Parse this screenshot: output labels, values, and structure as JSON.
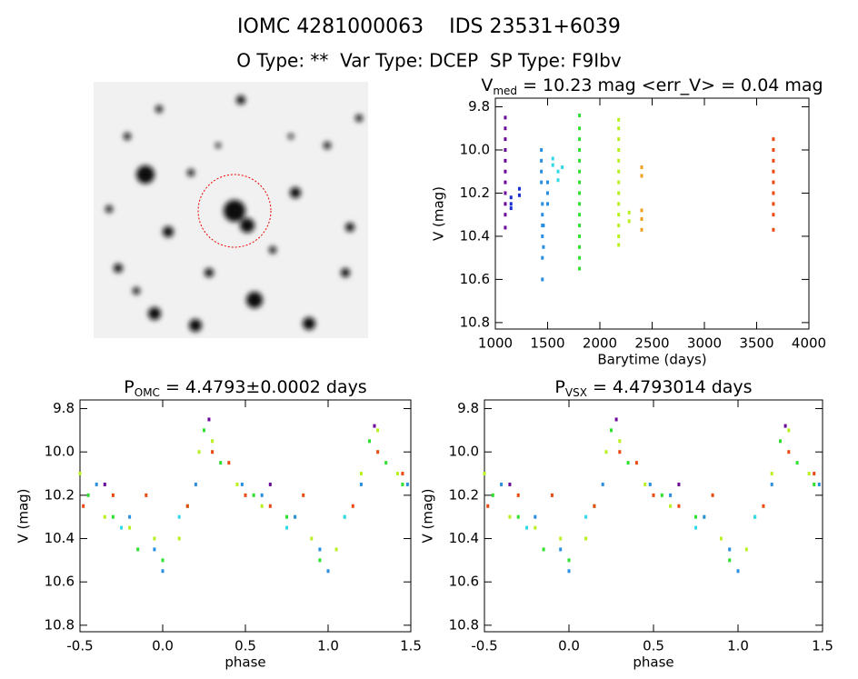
{
  "header": {
    "title": "IOMC 4281000063    IDS 23531+6039",
    "subtitle": "O Type: **  Var Type: DCEP  SP Type: F9Ibv"
  },
  "chart_data": [
    {
      "type": "scatter",
      "title": "V",
      "title_sub": "med",
      "title_rest": " = 10.23 mag <err_V> = 0.04 mag",
      "x_label": "Barytime (days)",
      "y_label": "V (mag)",
      "xlim": [
        1000,
        4000
      ],
      "xticks": [
        1000,
        1500,
        2000,
        2500,
        3000,
        3500,
        4000
      ],
      "ylim": [
        10.83,
        9.76
      ],
      "yticks": [
        9.8,
        {
          "value": 10,
          "label": "10.0"
        },
        10.2,
        10.4,
        10.6,
        10.8
      ],
      "series": [
        {
          "color": "#6a0a9a",
          "x": [
            1095,
            1095,
            1095,
            1095,
            1095,
            1095,
            1095,
            1095,
            1095,
            1095,
            1095
          ],
          "values": [
            9.85,
            9.9,
            9.95,
            10.0,
            10.05,
            10.1,
            10.15,
            10.2,
            10.25,
            10.3,
            10.36
          ]
        },
        {
          "color": "#1a2fd0",
          "x": [
            1150,
            1150,
            1150,
            1230,
            1230
          ],
          "values": [
            10.22,
            10.25,
            10.27,
            10.18,
            10.21
          ]
        },
        {
          "color": "#2a8fe0",
          "x": [
            1440,
            1440,
            1440,
            1440,
            1450,
            1450,
            1450,
            1450,
            1450,
            1450,
            1460,
            1460,
            1500,
            1500,
            1500
          ],
          "values": [
            10.0,
            10.05,
            10.1,
            10.15,
            10.25,
            10.3,
            10.35,
            10.4,
            10.5,
            10.6,
            10.35,
            10.45,
            10.15,
            10.2,
            10.25
          ]
        },
        {
          "color": "#35d8e8",
          "x": [
            1550,
            1550,
            1600,
            1600,
            1640
          ],
          "values": [
            10.04,
            10.07,
            10.1,
            10.14,
            10.08
          ]
        },
        {
          "color": "#2fe02f",
          "x": [
            1805,
            1805,
            1805,
            1805,
            1805,
            1805,
            1805,
            1805,
            1805,
            1805,
            1805,
            1805,
            1805,
            1805,
            1805
          ],
          "values": [
            9.84,
            9.9,
            9.95,
            10.0,
            10.05,
            10.1,
            10.15,
            10.2,
            10.25,
            10.3,
            10.35,
            10.4,
            10.45,
            10.5,
            10.55
          ]
        },
        {
          "color": "#b8f020",
          "x": [
            2180,
            2180,
            2180,
            2180,
            2180,
            2180,
            2180,
            2180,
            2180,
            2180,
            2180,
            2180,
            2180,
            2280,
            2280
          ],
          "values": [
            9.86,
            9.9,
            9.95,
            10.0,
            10.05,
            10.1,
            10.15,
            10.2,
            10.25,
            10.3,
            10.35,
            10.4,
            10.44,
            10.29,
            10.33
          ]
        },
        {
          "color": "#f0a020",
          "x": [
            2400,
            2400,
            2400,
            2400,
            2400
          ],
          "values": [
            10.08,
            10.12,
            10.28,
            10.32,
            10.37
          ]
        },
        {
          "color": "#e84a10",
          "x": [
            3660,
            3660,
            3660,
            3660,
            3660,
            3660,
            3660,
            3660,
            3660
          ],
          "values": [
            9.95,
            10.0,
            10.05,
            10.1,
            10.15,
            10.2,
            10.25,
            10.3,
            10.37
          ]
        }
      ]
    },
    {
      "type": "scatter",
      "title": "P",
      "title_sub": "OMC",
      "title_rest": " = 4.4793±0.0002 days",
      "x_label": "phase",
      "y_label": "V (mag)",
      "xlim": [
        -0.5,
        1.5
      ],
      "xticks": [
        -0.5,
        {
          "value": 0,
          "label": "0.0"
        },
        0.5,
        {
          "value": 1,
          "label": "1.0"
        },
        1.5
      ],
      "ylim": [
        10.83,
        9.76
      ],
      "yticks": [
        9.8,
        {
          "value": 10,
          "label": "10.0"
        },
        10.2,
        10.4,
        10.6,
        10.8
      ],
      "series": [
        {
          "color": "#2fe02f",
          "x": [
            -0.45,
            -0.3,
            -0.15,
            0.0,
            0.15,
            0.25,
            0.35,
            0.55,
            0.75,
            0.95,
            1.1,
            1.25,
            1.35,
            1.45
          ],
          "values": [
            10.2,
            10.3,
            10.45,
            10.5,
            10.25,
            9.9,
            10.05,
            10.2,
            10.3,
            10.5,
            10.3,
            9.95,
            10.05,
            10.15
          ]
        },
        {
          "color": "#b8f020",
          "x": [
            -0.5,
            -0.35,
            -0.2,
            -0.05,
            0.1,
            0.22,
            0.3,
            0.45,
            0.6,
            0.8,
            0.9,
            1.05,
            1.2,
            1.3,
            1.42
          ],
          "values": [
            10.1,
            10.3,
            10.35,
            10.4,
            10.4,
            10.0,
            9.95,
            10.15,
            10.25,
            10.3,
            10.4,
            10.45,
            10.1,
            9.9,
            10.1
          ]
        },
        {
          "color": "#2a8fe0",
          "x": [
            -0.4,
            -0.2,
            -0.05,
            0.0,
            0.2,
            0.48,
            0.6,
            0.8,
            0.95,
            1.0,
            1.2,
            1.48
          ],
          "values": [
            10.15,
            10.3,
            10.45,
            10.55,
            10.15,
            10.15,
            10.2,
            10.3,
            10.45,
            10.55,
            10.15,
            10.15
          ]
        },
        {
          "color": "#e84a10",
          "x": [
            -0.48,
            -0.3,
            -0.1,
            0.15,
            0.3,
            0.4,
            0.5,
            0.65,
            0.85,
            1.15,
            1.3,
            1.45
          ],
          "values": [
            10.25,
            10.2,
            10.2,
            10.25,
            10.0,
            10.05,
            10.2,
            10.25,
            10.2,
            10.25,
            10.0,
            10.1
          ]
        },
        {
          "color": "#6a0a9a",
          "x": [
            -0.35,
            0.28,
            0.65,
            1.28
          ],
          "values": [
            10.15,
            9.85,
            10.15,
            9.88
          ]
        },
        {
          "color": "#35d8e8",
          "x": [
            -0.25,
            0.1,
            0.75,
            1.1
          ],
          "values": [
            10.35,
            10.3,
            10.35,
            10.3
          ]
        }
      ]
    },
    {
      "type": "scatter",
      "title": "P",
      "title_sub": "VSX",
      "title_rest": " = 4.4793014 days",
      "x_label": "phase",
      "y_label": "V (mag)",
      "xlim": [
        -0.5,
        1.5
      ],
      "xticks": [
        -0.5,
        {
          "value": 0,
          "label": "0.0"
        },
        0.5,
        {
          "value": 1,
          "label": "1.0"
        },
        1.5
      ],
      "ylim": [
        10.83,
        9.76
      ],
      "yticks": [
        9.8,
        {
          "value": 10,
          "label": "10.0"
        },
        10.2,
        10.4,
        10.6,
        10.8
      ],
      "series": [
        {
          "color": "#2fe02f",
          "x": [
            -0.45,
            -0.3,
            -0.15,
            0.0,
            0.15,
            0.25,
            0.35,
            0.55,
            0.75,
            0.95,
            1.1,
            1.25,
            1.35,
            1.45
          ],
          "values": [
            10.2,
            10.3,
            10.45,
            10.5,
            10.25,
            9.9,
            10.05,
            10.2,
            10.3,
            10.5,
            10.3,
            9.95,
            10.05,
            10.15
          ]
        },
        {
          "color": "#b8f020",
          "x": [
            -0.5,
            -0.35,
            -0.2,
            -0.05,
            0.1,
            0.22,
            0.3,
            0.45,
            0.6,
            0.8,
            0.9,
            1.05,
            1.2,
            1.3,
            1.42
          ],
          "values": [
            10.1,
            10.3,
            10.35,
            10.4,
            10.4,
            10.0,
            9.95,
            10.15,
            10.25,
            10.3,
            10.4,
            10.45,
            10.1,
            9.9,
            10.1
          ]
        },
        {
          "color": "#2a8fe0",
          "x": [
            -0.4,
            -0.2,
            -0.05,
            0.0,
            0.2,
            0.48,
            0.6,
            0.8,
            0.95,
            1.0,
            1.2,
            1.48
          ],
          "values": [
            10.15,
            10.3,
            10.45,
            10.55,
            10.15,
            10.15,
            10.2,
            10.3,
            10.45,
            10.55,
            10.15,
            10.15
          ]
        },
        {
          "color": "#e84a10",
          "x": [
            -0.48,
            -0.3,
            -0.1,
            0.15,
            0.3,
            0.4,
            0.5,
            0.65,
            0.85,
            1.15,
            1.3,
            1.45
          ],
          "values": [
            10.25,
            10.2,
            10.2,
            10.25,
            10.0,
            10.05,
            10.2,
            10.25,
            10.2,
            10.25,
            10.0,
            10.1
          ]
        },
        {
          "color": "#6a0a9a",
          "x": [
            -0.35,
            0.28,
            0.65,
            1.28
          ],
          "values": [
            10.15,
            9.85,
            10.15,
            9.88
          ]
        },
        {
          "color": "#35d8e8",
          "x": [
            -0.25,
            0.1,
            0.75,
            1.1
          ],
          "values": [
            10.35,
            10.3,
            10.35,
            10.3
          ]
        }
      ]
    }
  ]
}
